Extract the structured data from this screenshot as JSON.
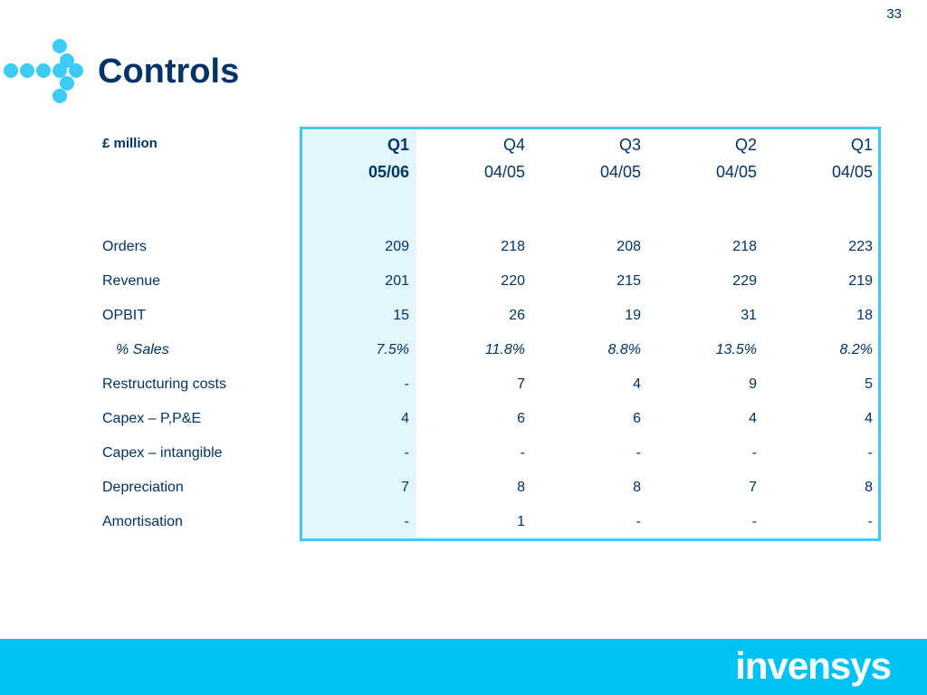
{
  "page_number": "33",
  "title": "Controls",
  "unit_label": "£ million",
  "columns": [
    {
      "quarter": "Q1",
      "year": "05/06",
      "current": true
    },
    {
      "quarter": "Q4",
      "year": "04/05",
      "current": false
    },
    {
      "quarter": "Q3",
      "year": "04/05",
      "current": false
    },
    {
      "quarter": "Q2",
      "year": "04/05",
      "current": false
    },
    {
      "quarter": "Q1",
      "year": "04/05",
      "current": false
    }
  ],
  "rows": [
    {
      "label": "Orders",
      "values": [
        "209",
        "218",
        "208",
        "218",
        "223"
      ],
      "italic": false
    },
    {
      "label": "Revenue",
      "values": [
        "201",
        "220",
        "215",
        "229",
        "219"
      ],
      "italic": false
    },
    {
      "label": "OPBIT",
      "values": [
        "15",
        "26",
        "19",
        "31",
        "18"
      ],
      "italic": false
    },
    {
      "label": "% Sales",
      "values": [
        "7.5%",
        "11.8%",
        "8.8%",
        "13.5%",
        "8.2%"
      ],
      "italic": true
    },
    {
      "label": "Restructuring costs",
      "values": [
        "-",
        "7",
        "4",
        "9",
        "5"
      ],
      "italic": false
    },
    {
      "label": "Capex – P,P&E",
      "values": [
        "4",
        "6",
        "6",
        "4",
        "4"
      ],
      "italic": false
    },
    {
      "label": "Capex – intangible",
      "values": [
        "-",
        "-",
        "-",
        "-",
        "-"
      ],
      "italic": false
    },
    {
      "label": "Depreciation",
      "values": [
        "7",
        "8",
        "8",
        "7",
        "8"
      ],
      "italic": false
    },
    {
      "label": "Amortisation",
      "values": [
        "-",
        "1",
        "-",
        "-",
        "-"
      ],
      "italic": false
    }
  ],
  "brand": "invensys",
  "colors": {
    "accent": "#3ccbf4",
    "navy": "#003366",
    "footer": "#00c2f2",
    "highlight": "#e3f6fd"
  }
}
